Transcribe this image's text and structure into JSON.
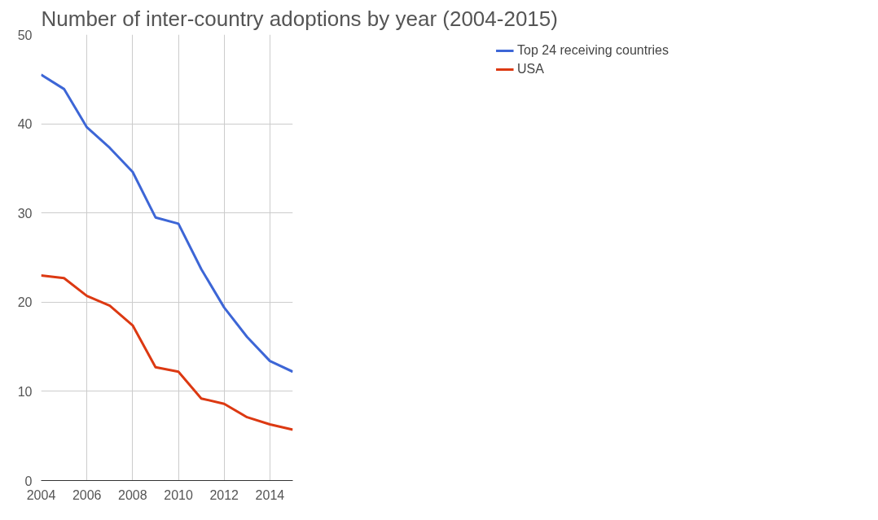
{
  "chart_data": {
    "type": "line",
    "title": "Number of inter-country adoptions by year (2004-2015)",
    "x": [
      2004,
      2005,
      2006,
      2007,
      2008,
      2009,
      2010,
      2011,
      2012,
      2013,
      2014,
      2015
    ],
    "series": [
      {
        "name": "Top 24 receiving countries",
        "color": "#3d66d6",
        "values": [
          45.5,
          43.9,
          39.6,
          37.3,
          34.6,
          29.5,
          28.8,
          23.7,
          19.4,
          16.1,
          13.4,
          12.2
        ]
      },
      {
        "name": "USA",
        "color": "#dc3912",
        "values": [
          23.0,
          22.7,
          20.7,
          19.6,
          17.4,
          12.7,
          12.2,
          9.2,
          8.6,
          7.1,
          6.3,
          5.7
        ]
      }
    ],
    "xlim": [
      2004,
      2015
    ],
    "xticks": [
      2004,
      2006,
      2008,
      2010,
      2012,
      2014
    ],
    "ylim": [
      0,
      50
    ],
    "yticks": [
      0,
      10,
      20,
      30,
      40,
      50
    ],
    "grid": true,
    "legend": "right",
    "marker": "none",
    "line_style": "solid"
  }
}
